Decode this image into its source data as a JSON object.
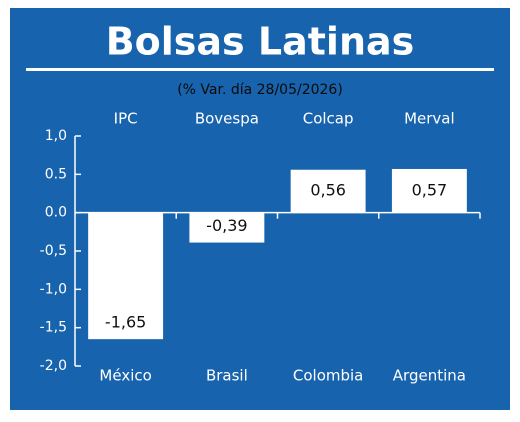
{
  "chart_data": {
    "type": "bar",
    "title": "Bolsas Latinas",
    "subtitle": "(% Var. día 28/05/2026)",
    "categories": [
      "IPC",
      "Bovespa",
      "Colcap",
      "Merval"
    ],
    "countries": [
      "México",
      "Brasil",
      "Colombia",
      "Argentina"
    ],
    "values": [
      -1.65,
      -0.39,
      0.56,
      0.57
    ],
    "value_labels": [
      "-1,65",
      "-0,39",
      "0,56",
      "0,57"
    ],
    "color": "#ffffff",
    "ylim": [
      -2,
      1
    ],
    "yticks": [
      {
        "value": 1,
        "label": "1,0"
      },
      {
        "value": 0.5,
        "label": "0.5"
      },
      {
        "value": 0,
        "label": "0.0"
      },
      {
        "value": -0.5,
        "label": "-0,5"
      },
      {
        "value": -1,
        "label": "-1,0"
      },
      {
        "value": -1.5,
        "label": "-1,5"
      },
      {
        "value": -2,
        "label": "-2,0"
      }
    ],
    "grid": false
  }
}
